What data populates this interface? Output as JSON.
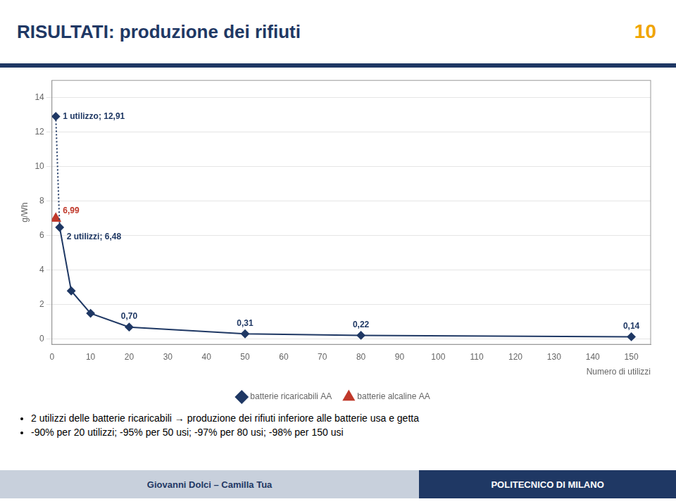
{
  "chart_data": {
    "type": "line",
    "title": "RISULTATI: produzione dei rifiuti",
    "xlabel": "Numero di utilizzi",
    "ylabel": "g/Wh",
    "xlim": [
      0,
      155
    ],
    "ylim": [
      -0.3,
      15
    ],
    "xticks": [
      0,
      10,
      20,
      30,
      40,
      50,
      60,
      70,
      80,
      90,
      100,
      110,
      120,
      130,
      140,
      150
    ],
    "yticks": [
      0,
      2,
      4,
      6,
      8,
      10,
      12,
      14
    ],
    "grid": true,
    "legend": "bottom",
    "series": [
      {
        "type": "line",
        "line_style": "dotted",
        "marker": "none",
        "color": "#1f3864",
        "x": [
          1,
          2
        ],
        "values": [
          12.91,
          6.48
        ]
      },
      {
        "type": "line",
        "line_style": "solid",
        "marker": "none",
        "color": "#1f3864",
        "x": [
          2,
          5,
          10,
          20,
          50,
          80,
          150
        ],
        "values": [
          6.48,
          2.8,
          1.5,
          0.7,
          0.31,
          0.22,
          0.14
        ]
      },
      {
        "name": "batterie ricaricabili AA",
        "type": "scatter",
        "marker": "diamond",
        "color": "#1f3864",
        "x": [
          1,
          2,
          5,
          10,
          20,
          50,
          80,
          150
        ],
        "values": [
          12.91,
          6.48,
          2.8,
          1.5,
          0.7,
          0.31,
          0.22,
          0.14
        ],
        "value_labels": [
          "1 utilizzo; 12,91",
          "2 utilizzi; 6,48",
          null,
          null,
          "0,70",
          "0,31",
          "0,22",
          "0,14"
        ]
      },
      {
        "name": "batterie alcaline AA",
        "type": "scatter",
        "marker": "triangle",
        "color": "#c0392b",
        "x": [
          1
        ],
        "values": [
          6.99
        ],
        "value_labels": [
          "6,99"
        ]
      }
    ]
  },
  "slide_number": "10",
  "bullets": [
    "2 utilizzi delle batterie ricaricabili → produzione dei rifiuti inferiore alle batterie usa e getta",
    "-90% per 20 utilizzi; -95% per 50 usi; -97% per 80 usi; -98% per 150 usi"
  ],
  "footer": [
    "Giovanni Dolci – Camilla Tua",
    "POLITECNICO DI MILANO"
  ]
}
